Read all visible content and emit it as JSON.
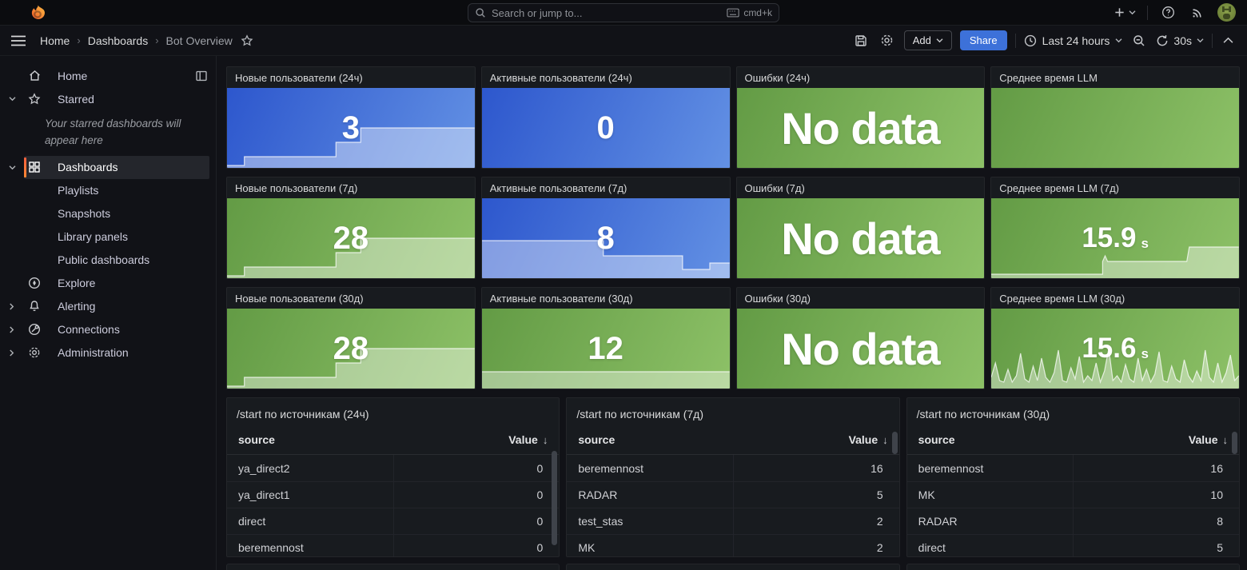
{
  "nav": {
    "search_placeholder": "Search or jump to...",
    "shortcut": "cmd+k"
  },
  "breadcrumb": {
    "items": [
      "Home",
      "Dashboards",
      "Bot Overview"
    ],
    "separator": "›"
  },
  "toolbar": {
    "add_label": "Add",
    "share_label": "Share",
    "time_range": "Last 24 hours",
    "refresh_interval": "30s"
  },
  "sidebar": {
    "starred_note": "Your starred dashboards will appear here",
    "items": [
      {
        "label": "Home"
      },
      {
        "label": "Starred"
      },
      {
        "label": "Dashboards"
      },
      {
        "label": "Playlists"
      },
      {
        "label": "Snapshots"
      },
      {
        "label": "Library panels"
      },
      {
        "label": "Public dashboards"
      },
      {
        "label": "Explore"
      },
      {
        "label": "Alerting"
      },
      {
        "label": "Connections"
      },
      {
        "label": "Administration"
      }
    ]
  },
  "panels": [
    {
      "title": "Новые пользователи (24ч)",
      "value": "3",
      "color": "blue",
      "spark": [
        [
          0,
          3
        ],
        [
          7,
          3
        ],
        [
          7,
          14
        ],
        [
          44,
          14
        ],
        [
          44,
          32
        ],
        [
          54,
          32
        ],
        [
          54,
          50
        ],
        [
          100,
          50
        ]
      ]
    },
    {
      "title": "Активные пользователи (24ч)",
      "value": "0",
      "color": "blue",
      "spark": []
    },
    {
      "title": "Ошибки (24ч)",
      "value": "No data",
      "color": "green",
      "spark": []
    },
    {
      "title": "Среднее время LLM",
      "value": "",
      "color": "green",
      "spark": []
    },
    {
      "title": "Новые пользователи (7д)",
      "value": "28",
      "color": "green",
      "spark": [
        [
          0,
          3
        ],
        [
          7,
          3
        ],
        [
          7,
          14
        ],
        [
          44,
          14
        ],
        [
          44,
          32
        ],
        [
          54,
          32
        ],
        [
          54,
          50
        ],
        [
          100,
          50
        ]
      ]
    },
    {
      "title": "Активные пользователи (7д)",
      "value": "8",
      "color": "blue",
      "spark": [
        [
          0,
          47
        ],
        [
          49,
          47
        ],
        [
          49,
          28
        ],
        [
          81,
          28
        ],
        [
          81,
          11
        ],
        [
          92,
          11
        ],
        [
          92,
          19
        ],
        [
          100,
          19
        ]
      ]
    },
    {
      "title": "Ошибки (7д)",
      "value": "No data",
      "color": "green",
      "spark": []
    },
    {
      "title": "Среднее время LLM (7д)",
      "value": "15.9",
      "unit": "s",
      "color": "green",
      "spark": [
        [
          0,
          5
        ],
        [
          45,
          5
        ],
        [
          45,
          21
        ],
        [
          46,
          28
        ],
        [
          47,
          21
        ],
        [
          79,
          21
        ],
        [
          80,
          39
        ],
        [
          100,
          39
        ]
      ]
    },
    {
      "title": "Новые пользователи (30д)",
      "value": "28",
      "color": "green",
      "spark": [
        [
          0,
          3
        ],
        [
          7,
          3
        ],
        [
          7,
          14
        ],
        [
          44,
          14
        ],
        [
          44,
          32
        ],
        [
          54,
          32
        ],
        [
          54,
          50
        ],
        [
          100,
          50
        ]
      ]
    },
    {
      "title": "Активные пользователи (30д)",
      "value": "12",
      "color": "green",
      "spark": [
        [
          0,
          21
        ],
        [
          100,
          21
        ]
      ]
    },
    {
      "title": "Ошибки (30д)",
      "value": "No data",
      "color": "green",
      "spark": []
    },
    {
      "title": "Среднее время LLM (30д)",
      "value": "15.6",
      "unit": "s",
      "color": "green",
      "spark": [
        14,
        32,
        10,
        8,
        24,
        8,
        16,
        44,
        12,
        8,
        28,
        10,
        38,
        14,
        8,
        20,
        48,
        10,
        8,
        26,
        12,
        40,
        8,
        16,
        10,
        32,
        8,
        22,
        50,
        10,
        16,
        8,
        30,
        12,
        8,
        38,
        10,
        24,
        8,
        18,
        46,
        10,
        8,
        28,
        12,
        8,
        36,
        16,
        8,
        22,
        10,
        48,
        14,
        8,
        32,
        8,
        20,
        42,
        10,
        16
      ]
    }
  ],
  "tables": [
    {
      "title": "/start по источникам (24ч)",
      "columns": {
        "source": "source",
        "value": "Value"
      },
      "sort_icon": "↓",
      "rows": [
        [
          "ya_direct2",
          "0"
        ],
        [
          "ya_direct1",
          "0"
        ],
        [
          "direct",
          "0"
        ],
        [
          "beremennost",
          "0"
        ]
      ]
    },
    {
      "title": "/start по источникам (7д)",
      "columns": {
        "source": "source",
        "value": "Value"
      },
      "sort_icon": "↓",
      "rows": [
        [
          "beremennost",
          "16"
        ],
        [
          "RADAR",
          "5"
        ],
        [
          "test_stas",
          "2"
        ],
        [
          "MK",
          "2"
        ]
      ]
    },
    {
      "title": "/start по источникам (30д)",
      "columns": {
        "source": "source",
        "value": "Value"
      },
      "sort_icon": "↓",
      "rows": [
        [
          "beremennost",
          "16"
        ],
        [
          "MK",
          "10"
        ],
        [
          "RADAR",
          "8"
        ],
        [
          "direct",
          "5"
        ]
      ]
    }
  ],
  "colors": {
    "accent_blue": "#3d71d9",
    "stat_blue_gradient": [
      "#2d57cd",
      "#6391e4"
    ],
    "stat_green_gradient": [
      "#639b45",
      "#8dc167"
    ],
    "active_item_orange": "#ff8833",
    "panel_bg": "#181b1f",
    "page_bg": "#111217"
  }
}
